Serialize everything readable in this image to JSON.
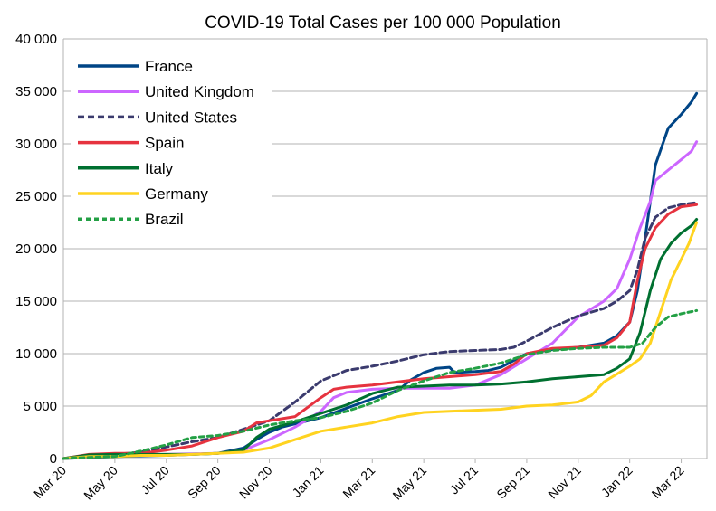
{
  "chart_data": {
    "type": "line",
    "title": "COVID-19 Total Cases per 100 000 Population",
    "xlabel": "",
    "ylabel": "",
    "ylim": [
      0,
      40000
    ],
    "yticks": [
      "0",
      "5 000",
      "10 000",
      "15 000",
      "20 000",
      "25 000",
      "30 000",
      "35 000",
      "40 000"
    ],
    "xticks": [
      "Mar 20",
      "May 20",
      "Jul 20",
      "Sep 20",
      "Nov 20",
      "Jan 21",
      "Mar 21",
      "May 21",
      "Jul 21",
      "Sep 21",
      "Nov 21",
      "Jan 22",
      "Mar 22"
    ],
    "x_unit": "months since Mar 2020",
    "grid": true,
    "legend_position": "top-left",
    "series": [
      {
        "name": "France",
        "color": "#004586",
        "dash": "solid",
        "points": [
          [
            0,
            0
          ],
          [
            2,
            200
          ],
          [
            4,
            300
          ],
          [
            6,
            500
          ],
          [
            7,
            1000
          ],
          [
            7.5,
            1800
          ],
          [
            8,
            2500
          ],
          [
            8.5,
            3000
          ],
          [
            9,
            3300
          ],
          [
            10,
            3900
          ],
          [
            11,
            4800
          ],
          [
            12,
            5700
          ],
          [
            13,
            6500
          ],
          [
            13.5,
            7500
          ],
          [
            14,
            8200
          ],
          [
            14.5,
            8600
          ],
          [
            15,
            8700
          ],
          [
            15.2,
            8200
          ],
          [
            16,
            8300
          ],
          [
            16.5,
            8400
          ],
          [
            17,
            8700
          ],
          [
            18,
            10000
          ],
          [
            19,
            10400
          ],
          [
            20,
            10600
          ],
          [
            21,
            11000
          ],
          [
            21.5,
            11700
          ],
          [
            22,
            13000
          ],
          [
            22.3,
            16000
          ],
          [
            22.6,
            21000
          ],
          [
            23,
            28000
          ],
          [
            23.5,
            31500
          ],
          [
            24,
            32800
          ],
          [
            24.4,
            34000
          ],
          [
            24.6,
            34800
          ]
        ]
      },
      {
        "name": "United Kingdom",
        "color": "#cc66ff",
        "dash": "solid",
        "points": [
          [
            0,
            0
          ],
          [
            2,
            300
          ],
          [
            4,
            400
          ],
          [
            6,
            500
          ],
          [
            7,
            800
          ],
          [
            8,
            1800
          ],
          [
            9,
            3000
          ],
          [
            10,
            4500
          ],
          [
            10.5,
            5800
          ],
          [
            11,
            6300
          ],
          [
            12,
            6600
          ],
          [
            13,
            6700
          ],
          [
            14,
            6700
          ],
          [
            15,
            6700
          ],
          [
            16,
            7000
          ],
          [
            17,
            8000
          ],
          [
            18,
            9500
          ],
          [
            19,
            11000
          ],
          [
            20,
            13500
          ],
          [
            21,
            15000
          ],
          [
            21.5,
            16200
          ],
          [
            22,
            19000
          ],
          [
            22.4,
            22000
          ],
          [
            22.8,
            24500
          ],
          [
            23,
            26500
          ],
          [
            23.5,
            27500
          ],
          [
            24,
            28500
          ],
          [
            24.4,
            29300
          ],
          [
            24.6,
            30200
          ]
        ]
      },
      {
        "name": "United States",
        "color": "#3b3b6e",
        "dash": "dashed",
        "points": [
          [
            0,
            0
          ],
          [
            2,
            400
          ],
          [
            3,
            600
          ],
          [
            4,
            1100
          ],
          [
            5,
            1600
          ],
          [
            6,
            2000
          ],
          [
            7,
            2800
          ],
          [
            8,
            3600
          ],
          [
            9,
            5400
          ],
          [
            10,
            7400
          ],
          [
            11,
            8400
          ],
          [
            12,
            8800
          ],
          [
            13,
            9300
          ],
          [
            14,
            9900
          ],
          [
            15,
            10200
          ],
          [
            16,
            10300
          ],
          [
            17,
            10400
          ],
          [
            17.5,
            10600
          ],
          [
            18,
            11200
          ],
          [
            19,
            12500
          ],
          [
            20,
            13600
          ],
          [
            21,
            14300
          ],
          [
            21.5,
            15000
          ],
          [
            22,
            16000
          ],
          [
            22.3,
            18000
          ],
          [
            22.6,
            21000
          ],
          [
            23,
            23000
          ],
          [
            23.5,
            23900
          ],
          [
            24,
            24200
          ],
          [
            24.6,
            24400
          ]
        ]
      },
      {
        "name": "Spain",
        "color": "#e6333f",
        "dash": "solid",
        "points": [
          [
            0,
            0
          ],
          [
            1,
            400
          ],
          [
            2,
            500
          ],
          [
            3,
            500
          ],
          [
            4,
            800
          ],
          [
            5,
            1200
          ],
          [
            6,
            2000
          ],
          [
            7,
            2600
          ],
          [
            7.5,
            3400
          ],
          [
            8,
            3600
          ],
          [
            9,
            4000
          ],
          [
            10,
            5800
          ],
          [
            10.5,
            6600
          ],
          [
            11,
            6800
          ],
          [
            12,
            7000
          ],
          [
            13,
            7300
          ],
          [
            14,
            7600
          ],
          [
            15,
            7800
          ],
          [
            16,
            8000
          ],
          [
            17,
            8300
          ],
          [
            17.5,
            9000
          ],
          [
            18,
            10000
          ],
          [
            19,
            10500
          ],
          [
            20,
            10600
          ],
          [
            21,
            10800
          ],
          [
            21.5,
            11500
          ],
          [
            22,
            13000
          ],
          [
            22.3,
            17000
          ],
          [
            22.6,
            20000
          ],
          [
            23,
            22000
          ],
          [
            23.5,
            23300
          ],
          [
            24,
            24000
          ],
          [
            24.6,
            24200
          ]
        ]
      },
      {
        "name": "Italy",
        "color": "#007030",
        "dash": "solid",
        "points": [
          [
            0,
            0
          ],
          [
            1,
            350
          ],
          [
            2,
            400
          ],
          [
            3,
            400
          ],
          [
            4,
            400
          ],
          [
            5,
            400
          ],
          [
            6,
            500
          ],
          [
            7,
            800
          ],
          [
            7.5,
            2000
          ],
          [
            8,
            2800
          ],
          [
            9,
            3500
          ],
          [
            10,
            4300
          ],
          [
            11,
            5100
          ],
          [
            12,
            6200
          ],
          [
            13,
            6800
          ],
          [
            14,
            6900
          ],
          [
            15,
            7000
          ],
          [
            16,
            7000
          ],
          [
            17,
            7100
          ],
          [
            18,
            7300
          ],
          [
            19,
            7600
          ],
          [
            20,
            7800
          ],
          [
            21,
            8000
          ],
          [
            21.5,
            8600
          ],
          [
            22,
            9500
          ],
          [
            22.4,
            12000
          ],
          [
            22.8,
            16000
          ],
          [
            23.2,
            19000
          ],
          [
            23.6,
            20500
          ],
          [
            24,
            21500
          ],
          [
            24.4,
            22200
          ],
          [
            24.6,
            22800
          ]
        ]
      },
      {
        "name": "Germany",
        "color": "#ffd320",
        "dash": "solid",
        "points": [
          [
            0,
            0
          ],
          [
            1,
            200
          ],
          [
            2,
            200
          ],
          [
            3,
            300
          ],
          [
            4,
            300
          ],
          [
            5,
            400
          ],
          [
            6,
            500
          ],
          [
            7,
            600
          ],
          [
            8,
            1000
          ],
          [
            9,
            1800
          ],
          [
            10,
            2600
          ],
          [
            11,
            3000
          ],
          [
            12,
            3400
          ],
          [
            13,
            4000
          ],
          [
            14,
            4400
          ],
          [
            15,
            4500
          ],
          [
            16,
            4600
          ],
          [
            17,
            4700
          ],
          [
            18,
            5000
          ],
          [
            19,
            5100
          ],
          [
            20,
            5400
          ],
          [
            20.5,
            6000
          ],
          [
            21,
            7300
          ],
          [
            22,
            8800
          ],
          [
            22.4,
            9500
          ],
          [
            22.8,
            11000
          ],
          [
            23.2,
            14000
          ],
          [
            23.6,
            17000
          ],
          [
            24,
            19000
          ],
          [
            24.3,
            20500
          ],
          [
            24.6,
            22500
          ]
        ]
      },
      {
        "name": "Brazil",
        "color": "#23a045",
        "dash": "dotted",
        "points": [
          [
            0,
            0
          ],
          [
            1,
            100
          ],
          [
            2,
            200
          ],
          [
            3,
            700
          ],
          [
            4,
            1300
          ],
          [
            5,
            2000
          ],
          [
            6,
            2200
          ],
          [
            7,
            2600
          ],
          [
            8,
            3200
          ],
          [
            9,
            3600
          ],
          [
            10,
            3900
          ],
          [
            11,
            4500
          ],
          [
            12,
            5300
          ],
          [
            13,
            6500
          ],
          [
            14,
            7400
          ],
          [
            15,
            8200
          ],
          [
            16,
            8600
          ],
          [
            17,
            9100
          ],
          [
            18,
            9900
          ],
          [
            19,
            10300
          ],
          [
            20,
            10500
          ],
          [
            21,
            10600
          ],
          [
            22,
            10600
          ],
          [
            22.5,
            11000
          ],
          [
            23,
            12500
          ],
          [
            23.5,
            13500
          ],
          [
            24,
            13800
          ],
          [
            24.6,
            14100
          ]
        ]
      }
    ]
  }
}
